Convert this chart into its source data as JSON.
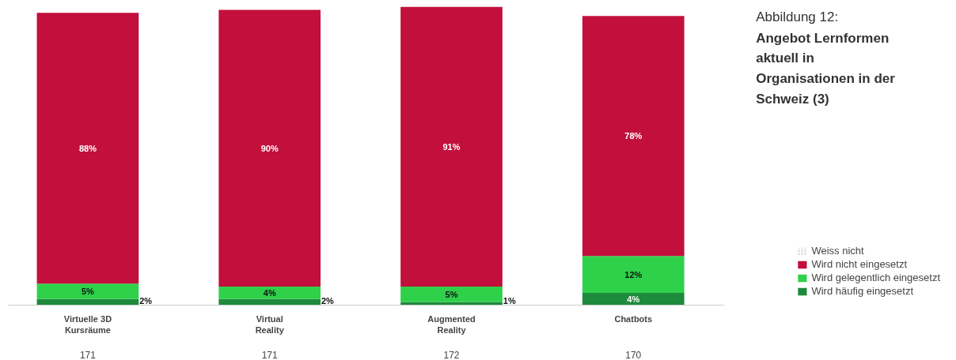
{
  "chart_data": {
    "type": "bar",
    "stacked": true,
    "subtitle": "Abbildung 12:",
    "title": "Angebot Lernformen aktuell in Organisationen in der Schweiz (3)",
    "categories": [
      "Virtuelle 3D Kursräume",
      "Virtual Reality",
      "Augmented Reality",
      "Chatbots"
    ],
    "series": [
      {
        "name": "Wird häufig eingesetzt",
        "color": "#1e8a3c",
        "values": [
          2,
          2,
          1,
          4
        ],
        "value_labels": [
          "2%",
          "2%",
          "1%",
          "4%"
        ]
      },
      {
        "name": "Wird gelegentlich eingesetzt",
        "color": "#2fd14a",
        "values": [
          5,
          4,
          5,
          12
        ],
        "value_labels": [
          "5%",
          "4%",
          "5%",
          "12%"
        ]
      },
      {
        "name": "Wird nicht eingesetzt",
        "color": "#c20f3c",
        "values": [
          88,
          90,
          91,
          78
        ],
        "value_labels": [
          "88%",
          "90%",
          "91%",
          "78%"
        ]
      },
      {
        "name": "Weiss nicht",
        "color": "#b0b0b0",
        "values": [
          null,
          null,
          null,
          null
        ]
      }
    ],
    "legend": "bottom right",
    "grid": false,
    "annotations": [
      "171",
      "171",
      "172",
      "170"
    ]
  }
}
